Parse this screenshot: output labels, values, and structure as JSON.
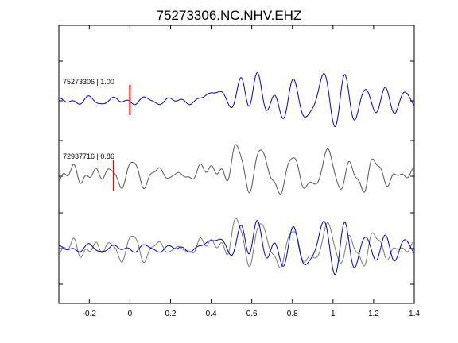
{
  "chart_data": {
    "type": "line",
    "title": "75273306.NC.NHV.EHZ",
    "xlabel": "",
    "ylabel": "",
    "xlim": [
      -0.35,
      1.4
    ],
    "xticks": [
      -0.2,
      0,
      0.2,
      0.4,
      0.6,
      0.8,
      1,
      1.2,
      1.4
    ],
    "xtick_labels": [
      "-0.2",
      "0",
      "0.2",
      "0.4",
      "0.6",
      "0.8",
      "1",
      "1.2",
      "1.4"
    ],
    "grid": false,
    "legend": "none",
    "colors": {
      "template": "#0000cc",
      "match": "#555555",
      "pick": "#ff0000",
      "overlay_match": "#777777"
    },
    "traces": [
      {
        "label": "75273306 | 1.00",
        "color": "#0000cc",
        "pick_time": 0.0,
        "noise_amp": 0.15,
        "arrivals": [
          {
            "t": 0.42,
            "f": 2.0,
            "a": 0.35,
            "w": 0.06
          },
          {
            "t": 0.55,
            "f": 7.0,
            "a": 1.0,
            "w": 0.05
          },
          {
            "t": 0.62,
            "f": 8.0,
            "a": 0.9,
            "w": 0.06
          },
          {
            "t": 0.8,
            "f": 9.0,
            "a": 0.6,
            "w": 0.12
          },
          {
            "t": 0.95,
            "f": 8.0,
            "a": 0.75,
            "w": 0.06
          },
          {
            "t": 1.05,
            "f": 10.0,
            "a": 0.55,
            "w": 0.08
          },
          {
            "t": 1.25,
            "f": 10.0,
            "a": 0.35,
            "w": 0.15
          }
        ]
      },
      {
        "label": "72937716 | 0.86",
        "color": "#555555",
        "pick_time": -0.08,
        "noise_amp": 0.22,
        "arrivals": [
          {
            "t": 0.0,
            "f": 9.0,
            "a": 0.35,
            "w": 0.12
          },
          {
            "t": 0.4,
            "f": 3.0,
            "a": 0.35,
            "w": 0.07
          },
          {
            "t": 0.52,
            "f": 6.0,
            "a": 1.0,
            "w": 0.06
          },
          {
            "t": 0.63,
            "f": 7.0,
            "a": 0.8,
            "w": 0.06
          },
          {
            "t": 0.8,
            "f": 8.0,
            "a": 0.55,
            "w": 0.12
          },
          {
            "t": 0.97,
            "f": 7.0,
            "a": 0.7,
            "w": 0.07
          },
          {
            "t": 1.2,
            "f": 7.0,
            "a": 0.4,
            "w": 0.14
          }
        ]
      }
    ]
  }
}
